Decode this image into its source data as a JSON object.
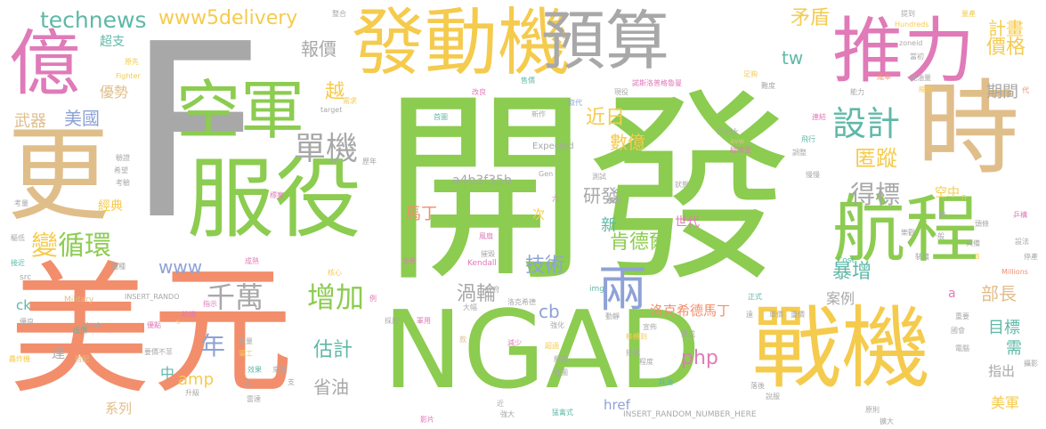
{
  "palette": {
    "green": "#8ccc50",
    "orange": "#f28e6b",
    "gold": "#f5cb4d",
    "pink": "#e07ab8",
    "grey": "#a8a8a8",
    "tan": "#e0be8a",
    "teal": "#5fb8a8",
    "blue": "#8ea2d6"
  },
  "words": [
    {
      "text": "開發",
      "color": "green"
    },
    {
      "text": "F",
      "color": "grey"
    },
    {
      "text": "美元",
      "color": "orange"
    },
    {
      "text": "NGAD",
      "color": "green"
    },
    {
      "text": "戰機",
      "color": "gold"
    },
    {
      "text": "時",
      "color": "tan"
    },
    {
      "text": "發動機",
      "color": "gold"
    },
    {
      "text": "推力",
      "color": "pink"
    },
    {
      "text": "預算",
      "color": "grey"
    },
    {
      "text": "服役",
      "color": "green"
    },
    {
      "text": "更",
      "color": "tan"
    },
    {
      "text": "億",
      "color": "pink"
    },
    {
      "text": "空軍",
      "color": "green"
    },
    {
      "text": "航程",
      "color": "green"
    },
    {
      "text": "單機",
      "color": "grey"
    },
    {
      "text": "設計",
      "color": "teal"
    },
    {
      "text": "兩",
      "color": "blue"
    },
    {
      "text": "technews",
      "color": "teal"
    },
    {
      "text": "www5delivery",
      "color": "gold"
    },
    {
      "text": "變",
      "color": "gold"
    },
    {
      "text": "循環",
      "color": "green"
    },
    {
      "text": "增加",
      "color": "green"
    },
    {
      "text": "千萬",
      "color": "grey"
    },
    {
      "text": "年",
      "color": "blue"
    },
    {
      "text": "得標",
      "color": "grey"
    },
    {
      "text": "肯德爾",
      "color": "green"
    },
    {
      "text": "價格",
      "color": "gold"
    },
    {
      "text": "計畫",
      "color": "gold"
    },
    {
      "text": "矛盾",
      "color": "gold"
    },
    {
      "text": "報價",
      "color": "grey"
    },
    {
      "text": "近日",
      "color": "gold"
    },
    {
      "text": "美國",
      "color": "blue"
    },
    {
      "text": "武器",
      "color": "tan"
    },
    {
      "text": "優勢",
      "color": "tan"
    },
    {
      "text": "超支",
      "color": "teal"
    },
    {
      "text": "匿蹤",
      "color": "gold"
    },
    {
      "text": "研發",
      "color": "grey"
    },
    {
      "text": "技術",
      "color": "blue"
    },
    {
      "text": "渦輪",
      "color": "grey"
    },
    {
      "text": "暴增",
      "color": "teal"
    },
    {
      "text": "部長",
      "color": "tan"
    },
    {
      "text": "估計",
      "color": "teal"
    },
    {
      "text": "省油",
      "color": "grey"
    },
    {
      "text": "目標",
      "color": "teal"
    },
    {
      "text": "美軍",
      "color": "gold"
    },
    {
      "text": "數億",
      "color": "gold"
    },
    {
      "text": "期間",
      "color": "grey"
    },
    {
      "text": "tw",
      "color": "teal"
    },
    {
      "text": "越",
      "color": "gold"
    },
    {
      "text": "馬丁",
      "color": "orange"
    },
    {
      "text": "新",
      "color": "teal"
    },
    {
      "text": "php",
      "color": "pink"
    },
    {
      "text": "amp",
      "color": "gold"
    },
    {
      "text": "cb",
      "color": "blue"
    },
    {
      "text": "www",
      "color": "blue"
    },
    {
      "text": "a4b3f35b",
      "color": "grey"
    },
    {
      "text": "洛克希德馬丁",
      "color": "orange"
    },
    {
      "text": "案例",
      "color": "grey"
    },
    {
      "text": "世代",
      "color": "pink"
    },
    {
      "text": "需",
      "color": "teal"
    },
    {
      "text": "指出",
      "color": "grey"
    },
    {
      "text": "空中",
      "color": "gold"
    },
    {
      "text": "中",
      "color": "teal"
    },
    {
      "text": "次",
      "color": "gold"
    },
    {
      "text": "href",
      "color": "blue"
    },
    {
      "text": "系列",
      "color": "tan"
    },
    {
      "text": "經典",
      "color": "gold"
    },
    {
      "text": "ck",
      "color": "teal"
    },
    {
      "text": "a",
      "color": "pink"
    },
    {
      "text": "達",
      "color": "grey"
    },
    {
      "text": "Expected",
      "color": "grey"
    },
    {
      "text": "INSERT_RANDOM_NUMBER_HERE",
      "color": "grey"
    },
    {
      "text": "INSERT_RANDO",
      "color": "grey"
    },
    {
      "text": "Military",
      "color": "tan"
    },
    {
      "text": "Kendall",
      "color": "pink"
    },
    {
      "text": "Frank",
      "color": "grey"
    },
    {
      "text": "Fighter",
      "color": "gold"
    },
    {
      "text": "Hundreds",
      "color": "gold"
    },
    {
      "text": "Millions",
      "color": "orange"
    },
    {
      "text": "Cost",
      "color": "teal"
    },
    {
      "text": "Gen",
      "color": "grey"
    },
    {
      "text": "target",
      "color": "grey"
    },
    {
      "text": "src",
      "color": "grey"
    },
    {
      "text": "_blank",
      "color": "grey"
    },
    {
      "text": "img",
      "color": "teal"
    },
    {
      "text": "zoneid",
      "color": "grey"
    },
    {
      "text": "avw",
      "color": "tan"
    },
    {
      "text": "n",
      "color": "gold"
    },
    {
      "text": "B",
      "color": "gold"
    },
    {
      "text": "s",
      "color": "gold"
    },
    {
      "text": "政府",
      "color": "grey"
    },
    {
      "text": "全新",
      "color": "pink"
    },
    {
      "text": "諾斯洛普格魯曼",
      "color": "pink"
    },
    {
      "text": "洛克希德",
      "color": "grey"
    },
    {
      "text": "改良",
      "color": "pink"
    },
    {
      "text": "售價",
      "color": "teal"
    },
    {
      "text": "現役",
      "color": "grey"
    },
    {
      "text": "足夠",
      "color": "gold"
    },
    {
      "text": "成本",
      "color": "orange"
    },
    {
      "text": "經濟型",
      "color": "pink"
    },
    {
      "text": "耗油量",
      "color": "grey"
    },
    {
      "text": "飛行",
      "color": "teal"
    },
    {
      "text": "摧毀",
      "color": "grey"
    },
    {
      "text": "數量",
      "color": "grey"
    },
    {
      "text": "軍工",
      "color": "gold"
    },
    {
      "text": "效果",
      "color": "teal"
    },
    {
      "text": "來源",
      "color": "grey"
    },
    {
      "text": "雷達",
      "color": "grey"
    },
    {
      "text": "網路",
      "color": "grey"
    },
    {
      "text": "程度",
      "color": "grey"
    },
    {
      "text": "影片",
      "color": "pink"
    },
    {
      "text": "強大",
      "color": "grey"
    },
    {
      "text": "猛禽式",
      "color": "teal"
    },
    {
      "text": "原則",
      "color": "grey"
    },
    {
      "text": "低價",
      "color": "teal"
    },
    {
      "text": "優點",
      "color": "pink"
    },
    {
      "text": "結構",
      "color": "pink"
    },
    {
      "text": "要價不菲",
      "color": "grey"
    },
    {
      "text": "轟炸機",
      "color": "gold"
    },
    {
      "text": "搭配",
      "color": "tan"
    },
    {
      "text": "接近",
      "color": "teal"
    },
    {
      "text": "驅低",
      "color": "grey"
    },
    {
      "text": "機種",
      "color": "grey"
    },
    {
      "text": "成熟",
      "color": "pink"
    },
    {
      "text": "核心",
      "color": "gold"
    },
    {
      "text": "標案",
      "color": "pink"
    },
    {
      "text": "需求",
      "color": "gold"
    },
    {
      "text": "歷年",
      "color": "grey"
    },
    {
      "text": "驗證",
      "color": "grey"
    },
    {
      "text": "希望",
      "color": "grey"
    },
    {
      "text": "考驗",
      "color": "grey"
    },
    {
      "text": "原先",
      "color": "gold"
    },
    {
      "text": "首圖",
      "color": "teal"
    },
    {
      "text": "新作",
      "color": "grey"
    },
    {
      "text": "取代",
      "color": "blue"
    },
    {
      "text": "測試",
      "color": "grey"
    },
    {
      "text": "構想",
      "color": "grey"
    },
    {
      "text": "狀態",
      "color": "grey"
    },
    {
      "text": "調整",
      "color": "grey"
    },
    {
      "text": "慢慢",
      "color": "grey"
    },
    {
      "text": "難度",
      "color": "grey"
    },
    {
      "text": "能力",
      "color": "grey"
    },
    {
      "text": "連結",
      "color": "pink"
    },
    {
      "text": "當初",
      "color": "grey"
    },
    {
      "text": "縮短",
      "color": "gold"
    },
    {
      "text": "提到",
      "color": "grey"
    },
    {
      "text": "量產",
      "color": "gold"
    },
    {
      "text": "整合",
      "color": "grey"
    },
    {
      "text": "風扇",
      "color": "pink"
    },
    {
      "text": "大幅",
      "color": "grey"
    },
    {
      "text": "減少",
      "color": "pink"
    },
    {
      "text": "超過",
      "color": "gold"
    },
    {
      "text": "採用",
      "color": "grey"
    },
    {
      "text": "軍用",
      "color": "pink"
    },
    {
      "text": "強化",
      "color": "grey"
    },
    {
      "text": "動靜",
      "color": "grey"
    },
    {
      "text": "宣佈",
      "color": "grey"
    },
    {
      "text": "正式",
      "color": "teal"
    },
    {
      "text": "國會",
      "color": "grey"
    },
    {
      "text": "電腦",
      "color": "grey"
    },
    {
      "text": "停產",
      "color": "grey"
    },
    {
      "text": "設法",
      "color": "grey"
    },
    {
      "text": "具備",
      "color": "grey"
    },
    {
      "text": "裝備",
      "color": "grey"
    },
    {
      "text": "樂觀",
      "color": "grey"
    },
    {
      "text": "一般",
      "color": "grey"
    },
    {
      "text": "頭條",
      "color": "grey"
    },
    {
      "text": "乒構",
      "color": "pink"
    },
    {
      "text": "後",
      "color": "grey"
    },
    {
      "text": "代",
      "color": "orange"
    },
    {
      "text": "六",
      "color": "pink"
    },
    {
      "text": "款",
      "color": "tan"
    },
    {
      "text": "指示",
      "color": "pink"
    },
    {
      "text": "例",
      "color": "pink"
    },
    {
      "text": "支",
      "color": "grey"
    },
    {
      "text": "近",
      "color": "grey"
    },
    {
      "text": "說服",
      "color": "grey"
    },
    {
      "text": "截圖",
      "color": "grey"
    },
    {
      "text": "耗油",
      "color": "teal"
    },
    {
      "text": "搭載",
      "color": "grey"
    },
    {
      "text": "移轉到",
      "color": "gold"
    },
    {
      "text": "達成",
      "color": "grey"
    },
    {
      "text": "重要",
      "color": "grey"
    },
    {
      "text": "遠",
      "color": "grey"
    },
    {
      "text": "單價",
      "color": "grey"
    },
    {
      "text": "重價",
      "color": "grey"
    },
    {
      "text": "落後",
      "color": "grey"
    },
    {
      "text": "擴大",
      "color": "grey"
    },
    {
      "text": "攝影",
      "color": "grey"
    },
    {
      "text": "先",
      "color": "grey"
    },
    {
      "text": "升級",
      "color": "grey"
    },
    {
      "text": "優良",
      "color": "grey"
    },
    {
      "text": "考量",
      "color": "grey"
    },
    {
      "text": "低權",
      "color": "grey"
    },
    {
      "text": "超",
      "color": "grey"
    }
  ]
}
